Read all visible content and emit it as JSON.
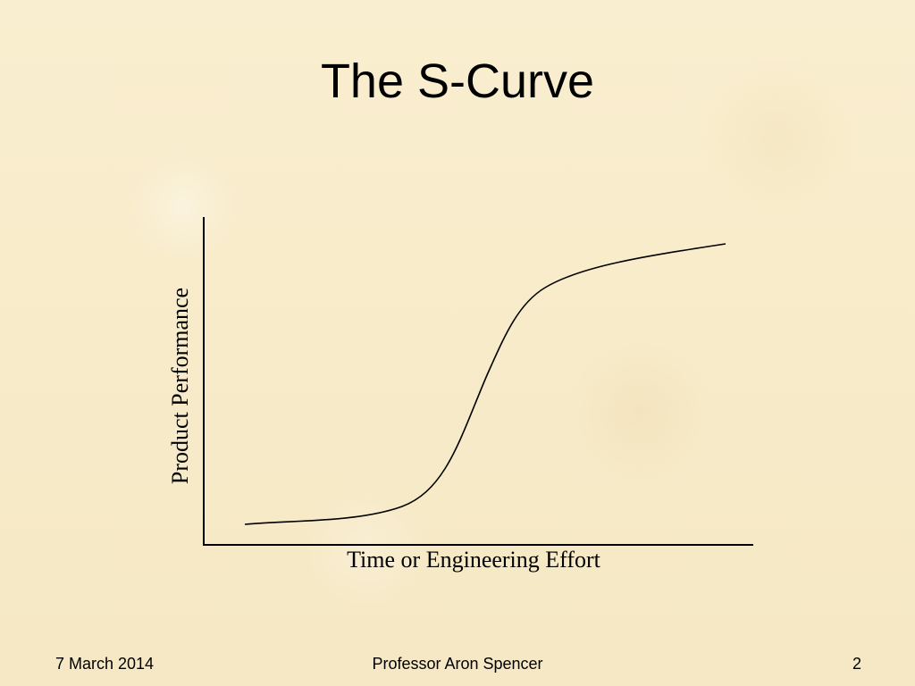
{
  "slide": {
    "title": "The S-Curve"
  },
  "diagram": {
    "type": "s-curve",
    "x_axis_label": "Time or Engineering Effort",
    "y_axis_label": "Product Performance",
    "line_color": "#000000"
  },
  "footer": {
    "date": "7 March 2014",
    "author": "Professor Aron Spencer",
    "page_number": "2"
  }
}
